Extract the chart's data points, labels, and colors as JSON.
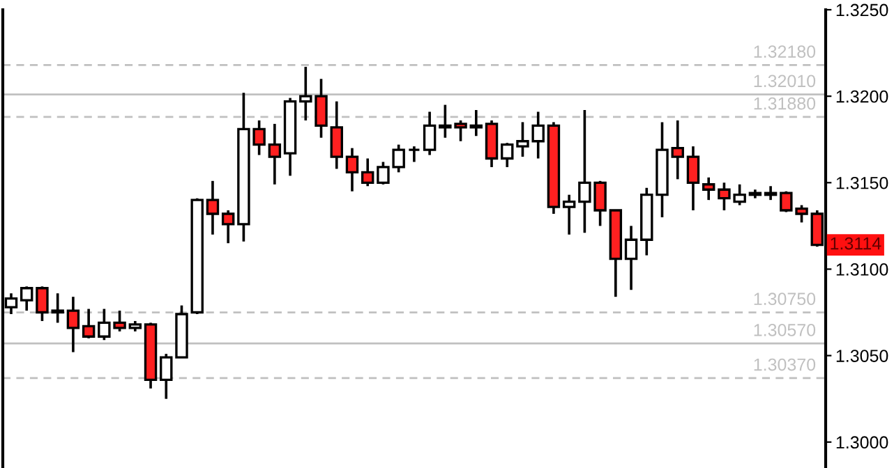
{
  "chart_data": {
    "type": "candlestick",
    "categories": [
      null,
      null,
      null,
      null,
      null,
      null,
      null,
      null,
      null,
      null,
      null,
      null,
      null,
      null,
      null,
      null,
      null,
      null,
      null,
      null,
      null,
      null,
      null,
      null,
      null,
      null,
      null,
      null,
      null,
      null,
      null,
      null,
      null,
      null,
      null,
      null,
      null,
      null,
      null,
      null,
      null,
      null,
      null,
      null,
      null,
      null,
      null,
      null,
      null,
      null,
      null,
      null,
      null
    ],
    "ohlc": [
      [
        1.3078,
        1.3086,
        1.3074,
        1.3083
      ],
      [
        1.3082,
        1.309,
        1.3076,
        1.3089
      ],
      [
        1.3089,
        1.309,
        1.307,
        1.3075
      ],
      [
        1.3075,
        1.3086,
        1.3069,
        1.3076
      ],
      [
        1.3076,
        1.3084,
        1.3052,
        1.3066
      ],
      [
        1.3067,
        1.3077,
        1.306,
        1.3061
      ],
      [
        1.3061,
        1.3077,
        1.3059,
        1.3069
      ],
      [
        1.3069,
        1.3076,
        1.3064,
        1.3066
      ],
      [
        1.3066,
        1.307,
        1.3064,
        1.3068
      ],
      [
        1.3068,
        1.3069,
        1.3031,
        1.3036
      ],
      [
        1.3036,
        1.3051,
        1.3025,
        1.3049
      ],
      [
        1.3049,
        1.3079,
        1.3049,
        1.3074
      ],
      [
        1.3075,
        1.3141,
        1.3074,
        1.314
      ],
      [
        1.314,
        1.3151,
        1.312,
        1.3132
      ],
      [
        1.3132,
        1.3134,
        1.3115,
        1.3126
      ],
      [
        1.3126,
        1.3202,
        1.3116,
        1.3181
      ],
      [
        1.3181,
        1.3186,
        1.3166,
        1.3172
      ],
      [
        1.3172,
        1.3184,
        1.3149,
        1.3165
      ],
      [
        1.3167,
        1.3199,
        1.3154,
        1.3197
      ],
      [
        1.3197,
        1.3217,
        1.3186,
        1.32
      ],
      [
        1.32,
        1.321,
        1.3176,
        1.3183
      ],
      [
        1.3182,
        1.3197,
        1.3158,
        1.3165
      ],
      [
        1.3165,
        1.317,
        1.3145,
        1.3156
      ],
      [
        1.3156,
        1.3164,
        1.3148,
        1.315
      ],
      [
        1.315,
        1.3162,
        1.3149,
        1.3159
      ],
      [
        1.3159,
        1.3172,
        1.3156,
        1.3169
      ],
      [
        1.3169,
        1.3171,
        1.3162,
        1.3169
      ],
      [
        1.3169,
        1.3191,
        1.3166,
        1.3183
      ],
      [
        1.3183,
        1.3195,
        1.3176,
        1.3182
      ],
      [
        1.3184,
        1.3186,
        1.3174,
        1.3182
      ],
      [
        1.3182,
        1.3192,
        1.3177,
        1.3183
      ],
      [
        1.3184,
        1.3186,
        1.3159,
        1.3164
      ],
      [
        1.3164,
        1.3173,
        1.3159,
        1.3172
      ],
      [
        1.3171,
        1.3185,
        1.3165,
        1.3174
      ],
      [
        1.3174,
        1.3191,
        1.3164,
        1.3183
      ],
      [
        1.3183,
        1.3185,
        1.3132,
        1.3136
      ],
      [
        1.3136,
        1.3143,
        1.312,
        1.3139
      ],
      [
        1.3139,
        1.3192,
        1.3121,
        1.315
      ],
      [
        1.315,
        1.3151,
        1.3125,
        1.3134
      ],
      [
        1.3134,
        1.3134,
        1.3084,
        1.3106
      ],
      [
        1.3106,
        1.3125,
        1.3088,
        1.3117
      ],
      [
        1.3117,
        1.3147,
        1.3108,
        1.3143
      ],
      [
        1.3143,
        1.3185,
        1.313,
        1.3169
      ],
      [
        1.317,
        1.3186,
        1.3152,
        1.3165
      ],
      [
        1.3165,
        1.3171,
        1.3134,
        1.315
      ],
      [
        1.3149,
        1.3153,
        1.314,
        1.3146
      ],
      [
        1.3146,
        1.315,
        1.3134,
        1.3141
      ],
      [
        1.3139,
        1.3149,
        1.3137,
        1.3143
      ],
      [
        1.3144,
        1.3146,
        1.3141,
        1.3143
      ],
      [
        1.3143,
        1.3148,
        1.314,
        1.3144
      ],
      [
        1.3144,
        1.3145,
        1.3133,
        1.3134
      ],
      [
        1.3135,
        1.3137,
        1.3127,
        1.3132
      ],
      [
        1.3132,
        1.3134,
        1.3113,
        1.3114
      ]
    ],
    "colors": [
      "#ffffff",
      "#ffffff",
      "#ff2020",
      "#ffffff",
      "#ff2020",
      "#ff2020",
      "#ffffff",
      "#ff2020",
      "#ffffff",
      "#ff2020",
      "#ffffff",
      "#ffffff",
      "#ffffff",
      "#ff2020",
      "#ff2020",
      "#ffffff",
      "#ff2020",
      "#ff2020",
      "#ffffff",
      "#ffffff",
      "#ff2020",
      "#ff2020",
      "#ff2020",
      "#ff2020",
      "#ffffff",
      "#ffffff",
      "#000000",
      "#ffffff",
      "#ff2020",
      "#ff2020",
      "#ffffff",
      "#ff2020",
      "#ffffff",
      "#ffffff",
      "#ffffff",
      "#ff2020",
      "#ffffff",
      "#ffffff",
      "#ff2020",
      "#ff2020",
      "#ffffff",
      "#ffffff",
      "#ffffff",
      "#ff2020",
      "#ff2020",
      "#ff2020",
      "#ff2020",
      "#ffffff",
      "#ff2020",
      "#ffffff",
      "#ff2020",
      "#ff2020",
      "#ff2020"
    ],
    "ylim": [
      1.2985,
      1.325
    ],
    "yticks": [
      {
        "value": 1.3,
        "label": "1.3000"
      },
      {
        "value": 1.305,
        "label": "1.3050"
      },
      {
        "value": 1.31,
        "label": "1.3100"
      },
      {
        "value": 1.315,
        "label": "1.3150"
      },
      {
        "value": 1.32,
        "label": "1.3200"
      },
      {
        "value": 1.325,
        "label": "1.3250"
      }
    ],
    "ref_lines": [
      {
        "axis": "y",
        "value": 1.3218,
        "label": "1.32180",
        "color": "#c0c0c0",
        "line_style": "dashed"
      },
      {
        "axis": "y",
        "value": 1.3201,
        "label": "1.32010",
        "color": "#c0c0c0",
        "line_style": "solid"
      },
      {
        "axis": "y",
        "value": 1.3188,
        "label": "1.31880",
        "color": "#c0c0c0",
        "line_style": "dashed"
      },
      {
        "axis": "y",
        "value": 1.3075,
        "label": "1.30750",
        "color": "#c0c0c0",
        "line_style": "dashed"
      },
      {
        "axis": "y",
        "value": 1.3057,
        "label": "1.30570",
        "color": "#c0c0c0",
        "line_style": "solid"
      },
      {
        "axis": "y",
        "value": 1.3037,
        "label": "1.30370",
        "color": "#c0c0c0",
        "line_style": "dashed"
      }
    ],
    "annotations": [
      "1.3114"
    ],
    "grid": false,
    "legend": false
  }
}
